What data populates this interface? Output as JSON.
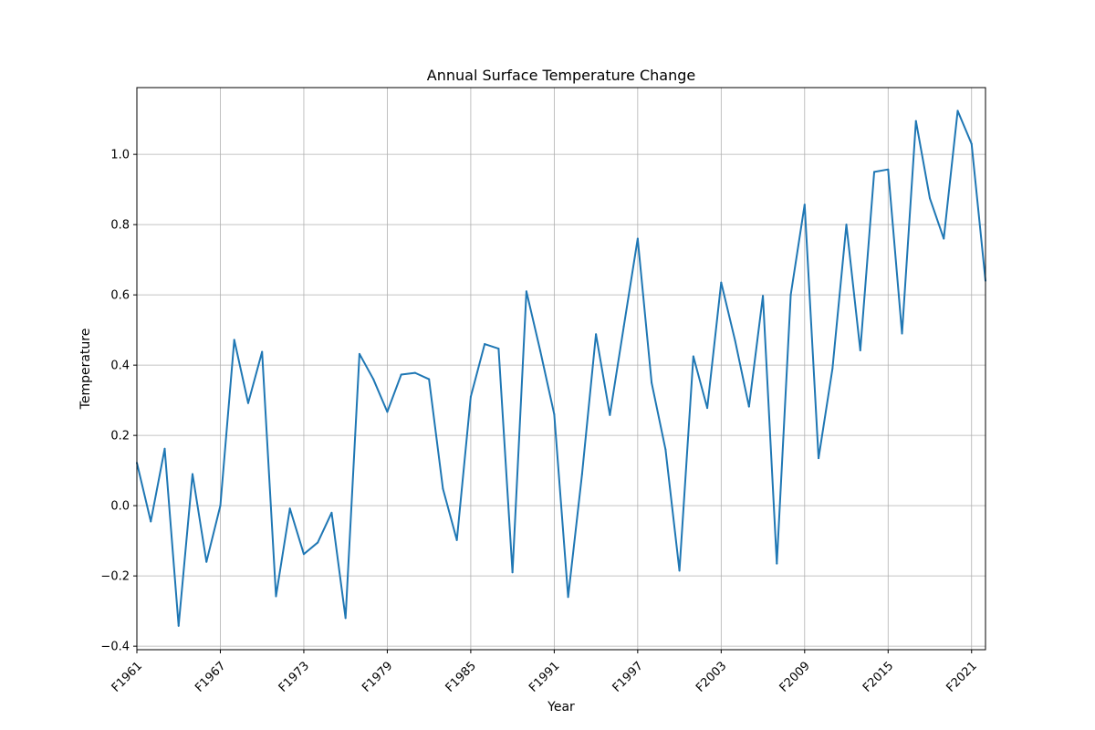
{
  "chart_data": {
    "type": "line",
    "title": "Annual Surface Temperature Change",
    "xlabel": "Year",
    "ylabel": "Temperature",
    "grid": true,
    "legend": "none",
    "ylim": [
      -0.41,
      1.19
    ],
    "yticks": [
      -0.4,
      -0.2,
      0.0,
      0.2,
      0.4,
      0.6,
      0.8,
      1.0
    ],
    "ytick_labels": [
      "−0.4",
      "−0.2",
      "0.0",
      "0.2",
      "0.4",
      "0.6",
      "0.8",
      "1.0"
    ],
    "xticks": [
      "F1961",
      "F1967",
      "F1973",
      "F1979",
      "F1985",
      "F1991",
      "F1997",
      "F2003",
      "F2009",
      "F2015",
      "F2021"
    ],
    "x": [
      "F1961",
      "F1962",
      "F1963",
      "F1964",
      "F1965",
      "F1966",
      "F1967",
      "F1968",
      "F1969",
      "F1970",
      "F1971",
      "F1972",
      "F1973",
      "F1974",
      "F1975",
      "F1976",
      "F1977",
      "F1978",
      "F1979",
      "F1980",
      "F1981",
      "F1982",
      "F1983",
      "F1984",
      "F1985",
      "F1986",
      "F1987",
      "F1988",
      "F1989",
      "F1990",
      "F1991",
      "F1992",
      "F1993",
      "F1994",
      "F1995",
      "F1996",
      "F1997",
      "F1998",
      "F1999",
      "F2000",
      "F2001",
      "F2002",
      "F2003",
      "F2004",
      "F2005",
      "F2006",
      "F2007",
      "F2008",
      "F2009",
      "F2010",
      "F2011",
      "F2012",
      "F2013",
      "F2014",
      "F2015",
      "F2016",
      "F2017",
      "F2018",
      "F2019",
      "F2020",
      "F2021",
      "F2022"
    ],
    "series": [
      {
        "color": "#1f77b4",
        "values": [
          0.122,
          -0.045,
          0.162,
          -0.342,
          0.09,
          -0.16,
          0.0,
          0.472,
          0.292,
          0.438,
          -0.258,
          -0.008,
          -0.138,
          -0.105,
          -0.02,
          -0.32,
          0.432,
          0.36,
          0.267,
          0.373,
          0.378,
          0.36,
          0.048,
          -0.098,
          0.31,
          0.46,
          0.447,
          -0.19,
          0.61,
          0.44,
          0.26,
          -0.26,
          0.09,
          0.488,
          0.258,
          0.51,
          0.76,
          0.35,
          0.16,
          -0.185,
          0.425,
          0.278,
          0.635,
          0.47,
          0.282,
          0.597,
          -0.165,
          0.6,
          0.857,
          0.135,
          0.39,
          0.8,
          0.442,
          0.95,
          0.957,
          0.49,
          1.095,
          0.875,
          0.76,
          1.124,
          1.03,
          0.64
        ]
      }
    ]
  }
}
